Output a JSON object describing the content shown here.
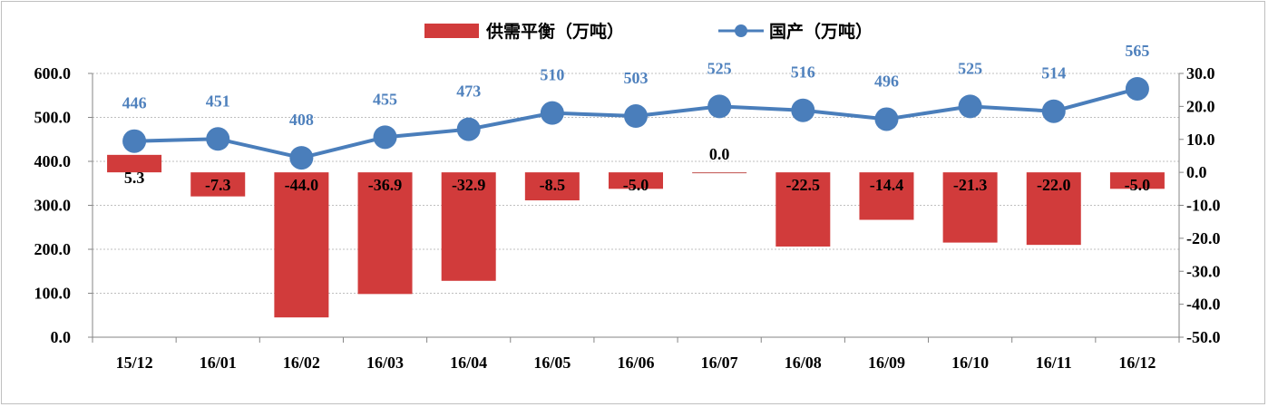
{
  "chart_data": {
    "type": "bar+line",
    "categories": [
      "15/12",
      "16/01",
      "16/02",
      "16/03",
      "16/04",
      "16/05",
      "16/06",
      "16/07",
      "16/08",
      "16/09",
      "16/10",
      "16/11",
      "16/12"
    ],
    "series": [
      {
        "name": "供需平衡（万吨）",
        "type": "bar",
        "axis": "right",
        "color": "#d13b3b",
        "values": [
          5.3,
          -7.3,
          -44.0,
          -36.9,
          -32.9,
          -8.5,
          -5.0,
          0.0,
          -22.5,
          -14.4,
          -21.3,
          -22.0,
          -5.0
        ],
        "labels": [
          "5.3",
          "-7.3",
          "-44.0",
          "-36.9",
          "-32.9",
          "-8.5",
          "-5.0",
          "0.0",
          "-22.5",
          "-14.4",
          "-21.3",
          "-22.0",
          "-5.0"
        ]
      },
      {
        "name": "国产（万吨）",
        "type": "line",
        "axis": "left",
        "color": "#4a7ebb",
        "values": [
          446,
          451,
          408,
          455,
          473,
          510,
          503,
          525,
          516,
          496,
          525,
          514,
          565
        ],
        "labels": [
          "446",
          "451",
          "408",
          "455",
          "473",
          "510",
          "503",
          "525",
          "516",
          "496",
          "525",
          "514",
          "565"
        ]
      }
    ],
    "y_left": {
      "ylim": [
        0,
        600
      ],
      "ticks": [
        "0.0",
        "100.0",
        "200.0",
        "300.0",
        "400.0",
        "500.0",
        "600.0"
      ]
    },
    "y_right": {
      "ylim": [
        -50,
        30
      ],
      "ticks": [
        "-50.0",
        "-40.0",
        "-30.0",
        "-20.0",
        "-10.0",
        "0.0",
        "10.0",
        "20.0",
        "30.0"
      ]
    },
    "grid": true,
    "legend": "top"
  }
}
